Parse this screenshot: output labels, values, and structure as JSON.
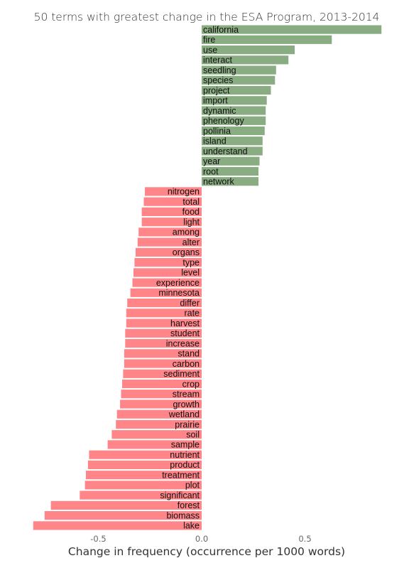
{
  "chart_data": {
    "type": "bar",
    "orientation": "horizontal",
    "title": "50 terms with  greatest change in the ESA Program, 2013-2014",
    "xlabel": "Change in frequency (occurrence per 1000 words)",
    "ylabel": "",
    "xlim": [
      -0.82,
      0.88
    ],
    "xticks": [
      -0.5,
      0.0,
      0.5
    ],
    "xtick_labels": [
      "-0.5",
      "0.0",
      "0.5"
    ],
    "grid": false,
    "colors": {
      "positive": "#8aac82",
      "negative": "#ff8589"
    },
    "categories": [
      "california",
      "fire",
      "use",
      "interact",
      "seedling",
      "species",
      "project",
      "import",
      "dynamic",
      "phenology",
      "pollinia",
      "island",
      "understand",
      "year",
      "root",
      "network",
      "nitrogen",
      "total",
      "food",
      "light",
      "among",
      "alter",
      "organs",
      "type",
      "level",
      "experience",
      "minnesota",
      "differ",
      "rate",
      "harvest",
      "student",
      "increase",
      "stand",
      "carbon",
      "sediment",
      "crop",
      "stream",
      "growth",
      "wetland",
      "prairie",
      "soil",
      "sample",
      "nutrient",
      "product",
      "treatment",
      "plot",
      "significant",
      "forest",
      "biomass",
      "lake"
    ],
    "values": [
      0.87,
      0.63,
      0.45,
      0.42,
      0.36,
      0.355,
      0.335,
      0.315,
      0.31,
      0.31,
      0.305,
      0.295,
      0.295,
      0.28,
      0.275,
      0.275,
      -0.275,
      -0.28,
      -0.29,
      -0.29,
      -0.305,
      -0.31,
      -0.32,
      -0.325,
      -0.33,
      -0.335,
      -0.345,
      -0.36,
      -0.365,
      -0.365,
      -0.37,
      -0.37,
      -0.375,
      -0.375,
      -0.38,
      -0.385,
      -0.39,
      -0.395,
      -0.41,
      -0.415,
      -0.435,
      -0.455,
      -0.545,
      -0.55,
      -0.56,
      -0.565,
      -0.59,
      -0.73,
      -0.76,
      -0.815
    ]
  }
}
